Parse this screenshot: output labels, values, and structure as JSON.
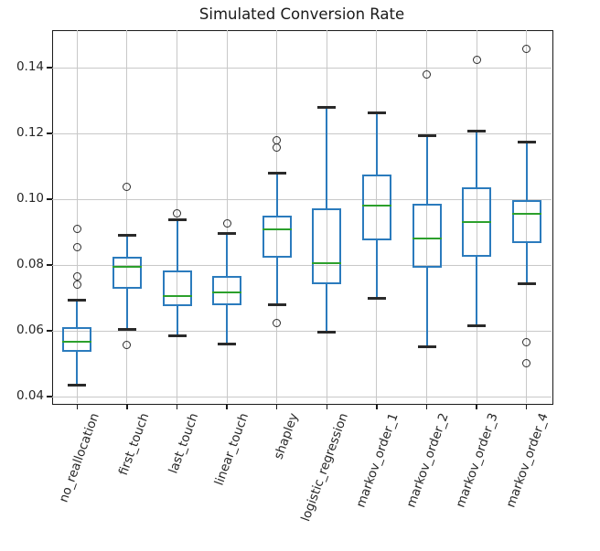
{
  "chart_data": {
    "type": "boxplot",
    "title": "Simulated Conversion Rate",
    "xlabel": "",
    "ylabel": "",
    "grid": true,
    "legend": false,
    "ylim": [
      0.0381,
      0.1514
    ],
    "y_ticks": [
      {
        "value": 0.04,
        "label": "0.04"
      },
      {
        "value": 0.06,
        "label": "0.06"
      },
      {
        "value": 0.08,
        "label": "0.08"
      },
      {
        "value": 0.1,
        "label": "0.10"
      },
      {
        "value": 0.12,
        "label": "0.12"
      },
      {
        "value": 0.14,
        "label": "0.14"
      }
    ],
    "categories": [
      "no_reallocation",
      "first_touch",
      "last_touch",
      "linear_touch",
      "shapley",
      "logistic_regression",
      "markov_order_1",
      "markov_order_2",
      "markov_order_3",
      "markov_order_4"
    ],
    "series": [
      {
        "category": "no_reallocation",
        "whisker_low": 0.0435,
        "q1": 0.0536,
        "median": 0.0566,
        "q3": 0.0612,
        "whisker_high": 0.0693,
        "outliers": [
          0.0911,
          0.0854,
          0.0766,
          0.0741
        ]
      },
      {
        "category": "first_touch",
        "whisker_low": 0.0605,
        "q1": 0.0728,
        "median": 0.0794,
        "q3": 0.0824,
        "whisker_high": 0.0891,
        "outliers": [
          0.1038,
          0.0556
        ]
      },
      {
        "category": "last_touch",
        "whisker_low": 0.0586,
        "q1": 0.0675,
        "median": 0.0707,
        "q3": 0.0783,
        "whisker_high": 0.0937,
        "outliers": [
          0.0957
        ]
      },
      {
        "category": "linear_touch",
        "whisker_low": 0.0561,
        "q1": 0.0677,
        "median": 0.0717,
        "q3": 0.0768,
        "whisker_high": 0.0895,
        "outliers": [
          0.0927
        ]
      },
      {
        "category": "shapley",
        "whisker_low": 0.068,
        "q1": 0.0823,
        "median": 0.0908,
        "q3": 0.095,
        "whisker_high": 0.108,
        "outliers": [
          0.118,
          0.1156,
          0.0625
        ]
      },
      {
        "category": "logistic_regression",
        "whisker_low": 0.0596,
        "q1": 0.0742,
        "median": 0.0807,
        "q3": 0.0973,
        "whisker_high": 0.128,
        "outliers": []
      },
      {
        "category": "markov_order_1",
        "whisker_low": 0.07,
        "q1": 0.0876,
        "median": 0.0981,
        "q3": 0.1076,
        "whisker_high": 0.1262,
        "outliers": []
      },
      {
        "category": "markov_order_2",
        "whisker_low": 0.0551,
        "q1": 0.0793,
        "median": 0.088,
        "q3": 0.0986,
        "whisker_high": 0.1194,
        "outliers": [
          0.138
        ]
      },
      {
        "category": "markov_order_3",
        "whisker_low": 0.0617,
        "q1": 0.0826,
        "median": 0.0932,
        "q3": 0.1035,
        "whisker_high": 0.1207,
        "outliers": [
          0.1423
        ]
      },
      {
        "category": "markov_order_4",
        "whisker_low": 0.0744,
        "q1": 0.0868,
        "median": 0.0955,
        "q3": 0.0997,
        "whisker_high": 0.1174,
        "outliers": [
          0.1456,
          0.0565,
          0.0502
        ]
      }
    ]
  },
  "style": {
    "box_color": "#2b7bbd",
    "median_color": "#2ca02c",
    "cap_color": "#2a2a2a",
    "flier_color": "#2b2b2b",
    "grid_color": "#c8c8c8",
    "spine_color": "#1a1a1a",
    "text_color": "#262626",
    "background_color": "#ffffff"
  }
}
